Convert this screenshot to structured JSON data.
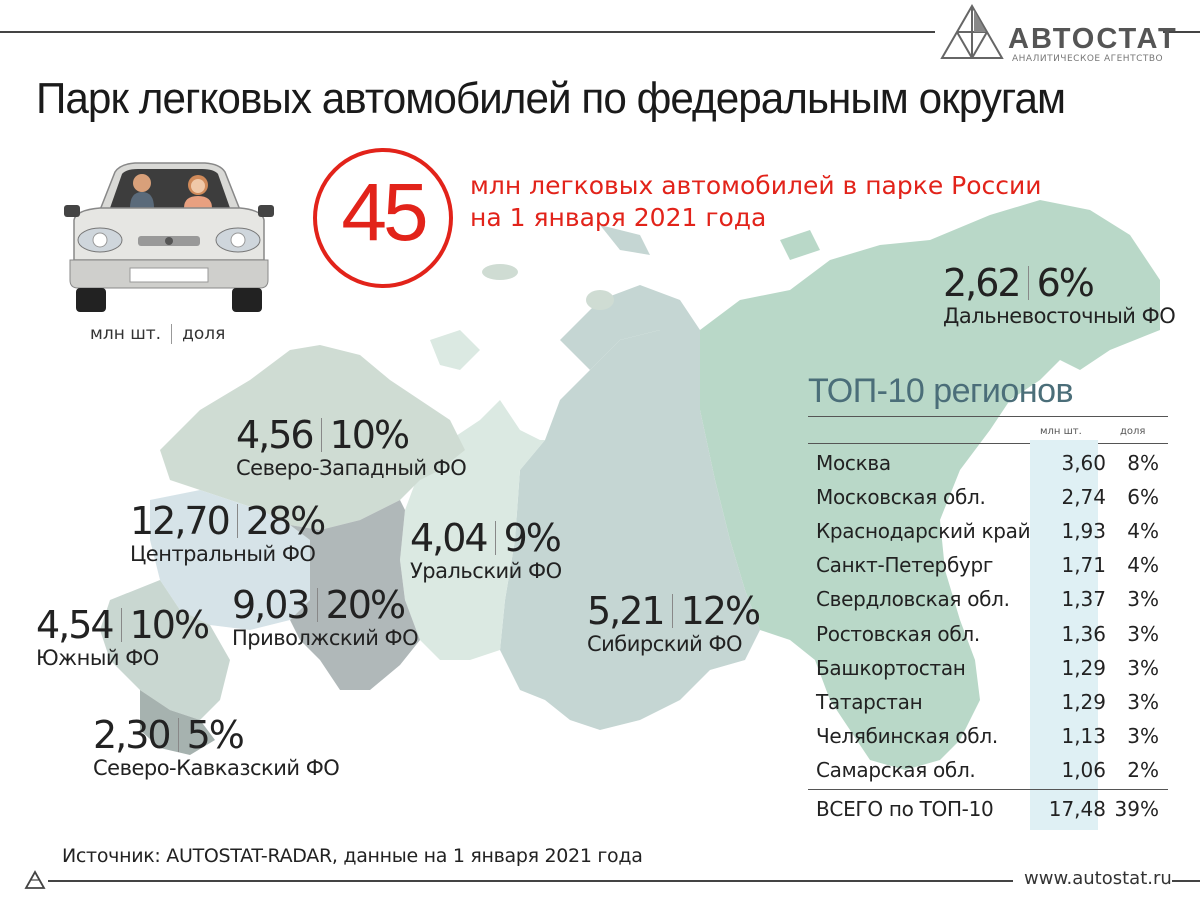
{
  "logo": {
    "name": "АВТОСТАТ",
    "subtitle": "АНАЛИТИЧЕСКОЕ АГЕНТСТВО"
  },
  "title": "Парк легковых автомобилей по федеральным округам",
  "total": {
    "value": "45",
    "caption": "млн легковых автомобилей в парке России на 1 января 2021 года"
  },
  "legend": {
    "units": "млн шт.",
    "share": "доля"
  },
  "districts": [
    {
      "name": "Дальневосточный ФО",
      "value": "2,62",
      "share": "6%"
    },
    {
      "name": "Северо-Западный ФО",
      "value": "4,56",
      "share": "10%"
    },
    {
      "name": "Центральный ФО",
      "value": "12,70",
      "share": "28%"
    },
    {
      "name": "Уральский ФО",
      "value": "4,04",
      "share": "9%"
    },
    {
      "name": "Приволжский ФО",
      "value": "9,03",
      "share": "20%"
    },
    {
      "name": "Южный ФО",
      "value": "4,54",
      "share": "10%"
    },
    {
      "name": "Сибирский ФО",
      "value": "5,21",
      "share": "12%"
    },
    {
      "name": "Северо-Кавказский ФО",
      "value": "2,30",
      "share": "5%"
    }
  ],
  "top10": {
    "title": "ТОП-10 регионов",
    "col_units": "млн шт.",
    "col_share": "доля",
    "rows": [
      {
        "name": "Москва",
        "value": "3,60",
        "share": "8%"
      },
      {
        "name": "Московская обл.",
        "value": "2,74",
        "share": "6%"
      },
      {
        "name": "Краснодарский край",
        "value": "1,93",
        "share": "4%"
      },
      {
        "name": "Санкт-Петербург",
        "value": "1,71",
        "share": "4%"
      },
      {
        "name": "Свердловская обл.",
        "value": "1,37",
        "share": "3%"
      },
      {
        "name": "Ростовская обл.",
        "value": "1,36",
        "share": "3%"
      },
      {
        "name": "Башкортостан",
        "value": "1,29",
        "share": "3%"
      },
      {
        "name": "Татарстан",
        "value": "1,29",
        "share": "3%"
      },
      {
        "name": "Челябинская обл.",
        "value": "1,13",
        "share": "3%"
      },
      {
        "name": "Самарская обл.",
        "value": "1,06",
        "share": "2%"
      }
    ],
    "total": {
      "name": "ВСЕГО по ТОП-10",
      "value": "17,48",
      "share": "39%"
    }
  },
  "source": "Источник: AUTOSTAT-RADAR, данные на 1 января 2021 года",
  "url": "www.autostat.ru",
  "colors": {
    "accent": "#e2231a",
    "table_title": "#4b6e79",
    "map_far_east": "#b9d8c8",
    "map_siberia": "#c5d6d3",
    "map_urals": "#dbe9e2",
    "map_northwest": "#cfdcd3",
    "map_central": "#d6e3e8",
    "map_volga": "#b0b8b9",
    "map_south": "#c9d7d1",
    "map_caucasus": "#a6b2af"
  },
  "icons": [
    "autostat-logo-icon",
    "car-illustration",
    "russia-map",
    "autostat-small-logo-icon"
  ]
}
